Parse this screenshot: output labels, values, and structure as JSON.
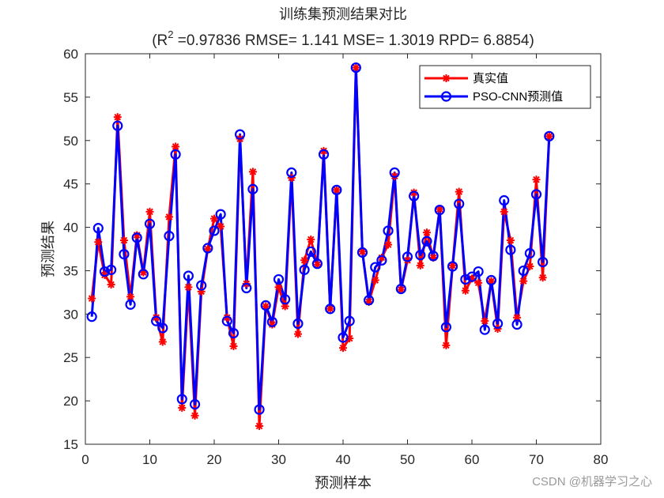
{
  "chart_data": {
    "type": "line",
    "title": "训练集预测结果对比",
    "subtitle_parts": {
      "open": "(R",
      "sup": "2",
      "rest": " =0.97836 RMSE= 1.141 MSE= 1.3019 RPD= 6.8854)"
    },
    "xlabel": "预测样本",
    "ylabel": "预测结果",
    "xlim": [
      0,
      80
    ],
    "ylim": [
      15,
      60
    ],
    "xticks": [
      0,
      10,
      20,
      30,
      40,
      50,
      60,
      70,
      80
    ],
    "yticks": [
      15,
      20,
      25,
      30,
      35,
      40,
      45,
      50,
      55,
      60
    ],
    "grid": false,
    "legend_position": "top-right",
    "x": [
      1,
      2,
      3,
      4,
      5,
      6,
      7,
      8,
      9,
      10,
      11,
      12,
      13,
      14,
      15,
      16,
      17,
      18,
      19,
      20,
      21,
      22,
      23,
      24,
      25,
      26,
      27,
      28,
      29,
      30,
      31,
      32,
      33,
      34,
      35,
      36,
      37,
      38,
      39,
      40,
      41,
      42,
      43,
      44,
      45,
      46,
      47,
      48,
      49,
      50,
      51,
      52,
      53,
      54,
      55,
      56,
      57,
      58,
      59,
      60,
      61,
      62,
      63,
      64,
      65,
      66,
      67,
      68,
      69,
      70,
      71,
      72
    ],
    "series": [
      {
        "name": "真实值",
        "color": "#ff0000",
        "marker": "asterisk",
        "values": [
          31.8,
          38.3,
          34.5,
          33.4,
          52.7,
          38.5,
          32.0,
          39.1,
          34.8,
          41.8,
          29.6,
          26.8,
          41.2,
          49.3,
          19.2,
          33.1,
          18.3,
          32.6,
          37.5,
          41.0,
          40.1,
          29.6,
          26.3,
          50.2,
          33.5,
          46.4,
          17.1,
          30.9,
          28.8,
          33.1,
          30.9,
          45.7,
          27.7,
          36.2,
          38.6,
          35.7,
          48.8,
          30.6,
          44.3,
          26.1,
          27.2,
          58.4,
          37.2,
          31.4,
          33.9,
          36.5,
          38.0,
          45.9,
          32.8,
          36.2,
          44.0,
          35.6,
          39.4,
          36.5,
          42.1,
          26.4,
          35.6,
          44.1,
          32.7,
          34.1,
          33.6,
          29.2,
          33.8,
          28.3,
          41.8,
          38.5,
          29.6,
          33.8,
          35.5,
          45.5,
          34.2,
          50.5
        ]
      },
      {
        "name": "PSO-CNN预测值",
        "color": "#0000ff",
        "marker": "circle",
        "values": [
          29.7,
          39.9,
          34.9,
          35.1,
          51.7,
          36.9,
          31.1,
          38.8,
          34.6,
          40.4,
          29.2,
          28.4,
          39.0,
          48.4,
          20.2,
          34.4,
          19.6,
          33.3,
          37.6,
          39.6,
          41.5,
          29.2,
          27.8,
          50.7,
          33.0,
          44.4,
          19.0,
          31.0,
          29.1,
          34.0,
          31.7,
          46.3,
          28.9,
          35.1,
          37.2,
          35.8,
          48.4,
          30.6,
          44.3,
          27.3,
          29.2,
          58.4,
          37.1,
          31.6,
          35.4,
          36.2,
          39.6,
          46.3,
          32.9,
          36.6,
          43.6,
          36.8,
          38.4,
          36.7,
          42.0,
          28.5,
          35.5,
          42.7,
          34.0,
          34.3,
          34.9,
          28.2,
          33.9,
          28.9,
          43.1,
          37.4,
          28.8,
          35.0,
          37.0,
          43.8,
          36.0,
          50.5
        ]
      }
    ]
  },
  "watermark": "CSDN @机器学习之心"
}
